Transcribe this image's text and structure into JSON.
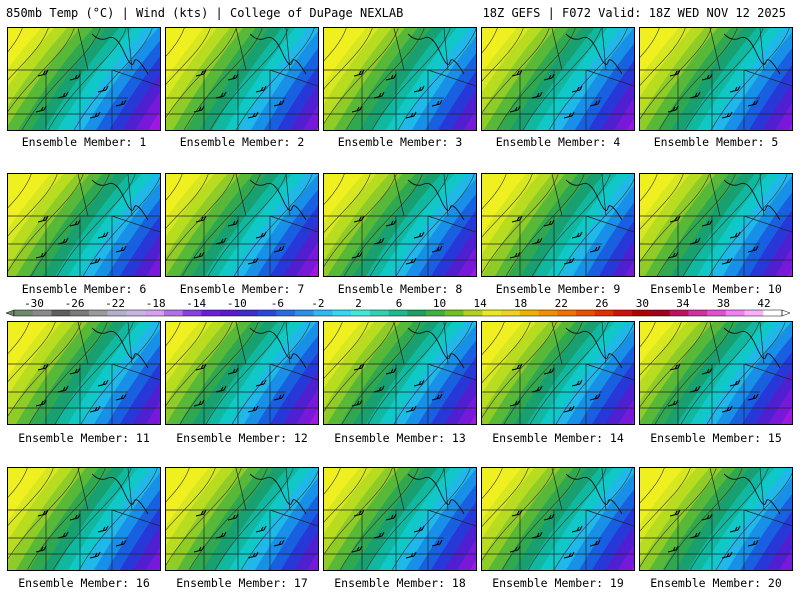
{
  "header": {
    "left_title": "850mb Temp (°C) | Wind (kts) | College of DuPage NEXLAB",
    "right_title": "18Z GEFS | F072 Valid: 18Z WED NOV 12 2025"
  },
  "caption_prefix": "Ensemble Member: ",
  "members": [
    {
      "label": "Ensemble Member: 1"
    },
    {
      "label": "Ensemble Member: 2"
    },
    {
      "label": "Ensemble Member: 3"
    },
    {
      "label": "Ensemble Member: 4"
    },
    {
      "label": "Ensemble Member: 5"
    },
    {
      "label": "Ensemble Member: 6"
    },
    {
      "label": "Ensemble Member: 7"
    },
    {
      "label": "Ensemble Member: 8"
    },
    {
      "label": "Ensemble Member: 9"
    },
    {
      "label": "Ensemble Member: 10"
    },
    {
      "label": "Ensemble Member: 11"
    },
    {
      "label": "Ensemble Member: 12"
    },
    {
      "label": "Ensemble Member: 13"
    },
    {
      "label": "Ensemble Member: 14"
    },
    {
      "label": "Ensemble Member: 15"
    },
    {
      "label": "Ensemble Member: 16"
    },
    {
      "label": "Ensemble Member: 17"
    },
    {
      "label": "Ensemble Member: 18"
    },
    {
      "label": "Ensemble Member: 19"
    },
    {
      "label": "Ensemble Member: 20"
    }
  ],
  "colorbar": {
    "labels": [
      "-30",
      "-26",
      "-22",
      "-18",
      "-14",
      "-10",
      "-6",
      "-2",
      "2",
      "6",
      "10",
      "14",
      "18",
      "22",
      "26",
      "30",
      "34",
      "38",
      "42"
    ],
    "colors": [
      "#6e8a6e",
      "#8a8a8a",
      "#5f5f5f",
      "#7a7a7a",
      "#9a9a9a",
      "#b0b0c8",
      "#c8b4e0",
      "#d7a0ee",
      "#b070e8",
      "#8a40e0",
      "#6a20d8",
      "#5a1ad0",
      "#3f2ec8",
      "#2a48d8",
      "#2a6ae0",
      "#2c90e8",
      "#30b8f0",
      "#30d8f0",
      "#40e8d8",
      "#30d0b0",
      "#20b890",
      "#20a060",
      "#40b040",
      "#70c020",
      "#b0d020",
      "#e8e820",
      "#f0d020",
      "#f0b000",
      "#f09000",
      "#f07000",
      "#e85000",
      "#e03000",
      "#d01010",
      "#b00000",
      "#a00020",
      "#c01060",
      "#d030a0",
      "#e050d0",
      "#f080f0",
      "#f8b0f8",
      "#ffffff"
    ]
  }
}
